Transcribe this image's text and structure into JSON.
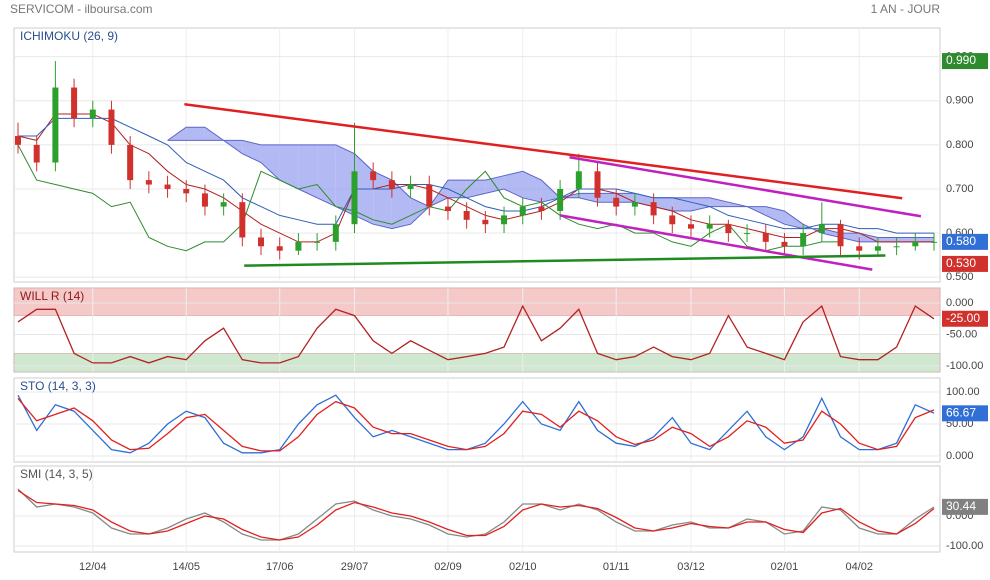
{
  "header": {
    "source": "SERVICOM - ilboursa.com",
    "period": "1 AN - JOUR"
  },
  "chart_data": [
    {
      "type": "candlestick",
      "title": "ICHIMOKU (26, 9)",
      "ylim": [
        0.489,
        1.065
      ],
      "yticks": [
        {
          "value": 0.5,
          "label": "0.500"
        },
        {
          "value": 0.6,
          "label": "0.600"
        },
        {
          "value": 0.7,
          "label": "0.700"
        },
        {
          "value": 0.8,
          "label": "0.800"
        },
        {
          "value": 0.9,
          "label": "0.900"
        },
        {
          "value": 1.0,
          "label": "1.000"
        }
      ],
      "up_color": "#2ca02c",
      "down_color": "#d0312d",
      "open": [
        0.82,
        0.8,
        0.76,
        0.93,
        0.86,
        0.88,
        0.8,
        0.72,
        0.71,
        0.7,
        0.69,
        0.66,
        0.67,
        0.59,
        0.57,
        0.56,
        0.58,
        0.58,
        0.62,
        0.74,
        0.72,
        0.7,
        0.71,
        0.66,
        0.65,
        0.63,
        0.62,
        0.64,
        0.66,
        0.65,
        0.7,
        0.74,
        0.68,
        0.66,
        0.67,
        0.64,
        0.62,
        0.61,
        0.62,
        0.6,
        0.6,
        0.58,
        0.57,
        0.6,
        0.62,
        0.57,
        0.56,
        0.57,
        0.57,
        0.58
      ],
      "high": [
        0.85,
        0.82,
        0.99,
        0.95,
        0.9,
        0.9,
        0.82,
        0.74,
        0.73,
        0.72,
        0.71,
        0.69,
        0.69,
        0.61,
        0.59,
        0.6,
        0.6,
        0.64,
        0.85,
        0.76,
        0.74,
        0.73,
        0.73,
        0.68,
        0.67,
        0.65,
        0.66,
        0.68,
        0.68,
        0.72,
        0.78,
        0.76,
        0.7,
        0.69,
        0.69,
        0.66,
        0.64,
        0.64,
        0.63,
        0.62,
        0.62,
        0.6,
        0.62,
        0.67,
        0.63,
        0.59,
        0.59,
        0.59,
        0.6,
        0.6
      ],
      "low": [
        0.78,
        0.74,
        0.74,
        0.84,
        0.84,
        0.78,
        0.7,
        0.69,
        0.68,
        0.67,
        0.64,
        0.64,
        0.57,
        0.55,
        0.54,
        0.55,
        0.56,
        0.56,
        0.6,
        0.7,
        0.68,
        0.68,
        0.64,
        0.63,
        0.61,
        0.6,
        0.6,
        0.62,
        0.63,
        0.63,
        0.68,
        0.66,
        0.64,
        0.64,
        0.62,
        0.6,
        0.59,
        0.59,
        0.58,
        0.58,
        0.56,
        0.55,
        0.55,
        0.58,
        0.55,
        0.54,
        0.55,
        0.55,
        0.56,
        0.56
      ],
      "close": [
        0.8,
        0.76,
        0.93,
        0.86,
        0.88,
        0.8,
        0.72,
        0.71,
        0.7,
        0.69,
        0.66,
        0.67,
        0.59,
        0.57,
        0.56,
        0.58,
        0.58,
        0.62,
        0.74,
        0.72,
        0.7,
        0.71,
        0.66,
        0.65,
        0.63,
        0.62,
        0.64,
        0.66,
        0.65,
        0.7,
        0.74,
        0.68,
        0.66,
        0.67,
        0.64,
        0.62,
        0.61,
        0.62,
        0.6,
        0.6,
        0.58,
        0.57,
        0.6,
        0.62,
        0.57,
        0.56,
        0.57,
        0.57,
        0.58,
        0.58
      ],
      "cloud": {
        "color": "#9aa3ef",
        "line_color": "#5b66c8",
        "span_a": [
          null,
          null,
          null,
          null,
          null,
          null,
          null,
          null,
          0.81,
          0.84,
          0.84,
          0.81,
          0.81,
          0.8,
          0.8,
          0.8,
          0.8,
          0.8,
          0.78,
          0.74,
          0.72,
          0.68,
          0.66,
          0.72,
          0.72,
          0.72,
          0.73,
          0.74,
          0.72,
          0.68,
          0.69,
          0.69,
          0.69,
          0.69,
          0.68,
          0.68,
          0.68,
          0.68,
          0.67,
          0.66,
          0.64,
          0.62,
          0.61,
          0.61,
          0.6,
          0.6,
          0.59,
          0.59,
          0.59,
          0.59
        ],
        "span_b": [
          null,
          null,
          null,
          null,
          null,
          null,
          null,
          null,
          0.81,
          0.81,
          0.81,
          0.81,
          0.78,
          0.76,
          0.72,
          0.7,
          0.68,
          0.66,
          0.64,
          0.62,
          0.61,
          0.62,
          0.66,
          0.68,
          0.68,
          0.69,
          0.7,
          0.68,
          0.67,
          0.68,
          0.68,
          0.67,
          0.67,
          0.67,
          0.66,
          0.65,
          0.65,
          0.66,
          0.66,
          0.66,
          0.66,
          0.65,
          0.62,
          0.6,
          0.59,
          0.58,
          0.58,
          0.58,
          0.58,
          0.58
        ]
      },
      "series": [
        {
          "color": "#b22222",
          "values": [
            0.82,
            0.81,
            0.87,
            0.87,
            0.87,
            0.85,
            0.8,
            0.78,
            0.74,
            0.71,
            0.7,
            0.68,
            0.65,
            0.62,
            0.6,
            0.58,
            0.58,
            0.6,
            0.7,
            0.7,
            0.71,
            0.71,
            0.7,
            0.68,
            0.66,
            0.64,
            0.63,
            0.64,
            0.65,
            0.67,
            0.7,
            0.7,
            0.69,
            0.67,
            0.66,
            0.65,
            0.63,
            0.62,
            0.62,
            0.61,
            0.6,
            0.59,
            0.59,
            0.61,
            0.61,
            0.6,
            0.58,
            0.58,
            0.58,
            0.58
          ]
        },
        {
          "color": "#2c5fb8",
          "values": [
            0.82,
            0.82,
            0.86,
            0.86,
            0.86,
            0.86,
            0.84,
            0.82,
            0.8,
            0.76,
            0.74,
            0.72,
            0.68,
            0.66,
            0.64,
            0.63,
            0.62,
            0.62,
            0.7,
            0.7,
            0.7,
            0.71,
            0.71,
            0.7,
            0.68,
            0.66,
            0.65,
            0.65,
            0.66,
            0.68,
            0.7,
            0.7,
            0.7,
            0.69,
            0.68,
            0.68,
            0.67,
            0.66,
            0.64,
            0.63,
            0.62,
            0.61,
            0.61,
            0.62,
            0.62,
            0.61,
            0.61,
            0.6,
            0.6,
            0.6
          ]
        },
        {
          "color": "#2e8b2e",
          "values": [
            0.8,
            0.72,
            0.71,
            0.7,
            0.69,
            0.66,
            0.67,
            0.59,
            0.57,
            0.56,
            0.58,
            0.58,
            0.62,
            0.74,
            0.72,
            0.7,
            0.71,
            0.66,
            0.65,
            0.63,
            0.62,
            0.64,
            0.66,
            0.65,
            0.7,
            0.74,
            0.68,
            0.66,
            0.67,
            0.64,
            0.62,
            0.61,
            0.62,
            0.6,
            0.6,
            0.58,
            0.57,
            0.6,
            0.62,
            0.57,
            0.56,
            0.57,
            0.57,
            0.58,
            0.58,
            null,
            null,
            null,
            null,
            null
          ]
        }
      ],
      "trend_lines": [
        {
          "color": "#e02020",
          "x": [
            8.9,
            47.3
          ],
          "y": [
            0.892,
            0.679
          ]
        },
        {
          "color": "#c020c0",
          "x": [
            29.5,
            48.3
          ],
          "y": [
            0.772,
            0.638
          ]
        },
        {
          "color": "#c020c0",
          "x": [
            29.0,
            45.7
          ],
          "y": [
            0.64,
            0.517
          ]
        },
        {
          "color": "#1f8a1f",
          "x": [
            12.1,
            46.4
          ],
          "y": [
            0.526,
            0.549
          ]
        }
      ],
      "badges": [
        {
          "value": 0.99,
          "label": "0.990",
          "color": "#2e8b2e"
        },
        {
          "value": 0.58,
          "label": "0.580",
          "color": "#2f6fd6"
        },
        {
          "value": 0.53,
          "label": "0.530",
          "color": "#d0312d"
        }
      ]
    },
    {
      "type": "line",
      "title": "WILL R (14)",
      "ylim": [
        -109.5,
        23.8
      ],
      "yticks": [
        {
          "value": 0,
          "label": "0.000"
        },
        {
          "value": -50,
          "label": "-50.00"
        },
        {
          "value": -100,
          "label": "-100.00"
        }
      ],
      "zones": [
        {
          "from": -20,
          "to": 23.8,
          "color": "#f6c9c9"
        },
        {
          "from": -109.5,
          "to": -80,
          "color": "#cfe8cf"
        }
      ],
      "series": [
        {
          "color": "#b22222",
          "values": [
            -30,
            -10,
            -10,
            -80,
            -95,
            -95,
            -85,
            -95,
            -85,
            -90,
            -60,
            -40,
            -90,
            -95,
            -95,
            -85,
            -40,
            -10,
            -20,
            -60,
            -80,
            -60,
            -75,
            -90,
            -85,
            -80,
            -70,
            -5,
            -60,
            -40,
            -10,
            -80,
            -90,
            -85,
            -70,
            -85,
            -90,
            -80,
            -20,
            -70,
            -80,
            -90,
            -30,
            -5,
            -85,
            -90,
            -90,
            -70,
            -5,
            -25
          ]
        }
      ],
      "badges": [
        {
          "value": -25,
          "label": "-25.00",
          "color": "#d0312d"
        }
      ]
    },
    {
      "type": "line",
      "title": "STO (14, 3, 3)",
      "ylim": [
        -9.4,
        121.9
      ],
      "yticks": [
        {
          "value": 100,
          "label": "100.00"
        },
        {
          "value": 50,
          "label": "50.00"
        },
        {
          "value": 0,
          "label": "0.000"
        }
      ],
      "series": [
        {
          "color": "#2f6fd6",
          "values": [
            95,
            40,
            80,
            70,
            40,
            10,
            5,
            20,
            50,
            70,
            60,
            20,
            5,
            5,
            10,
            50,
            80,
            95,
            60,
            30,
            40,
            30,
            20,
            10,
            10,
            20,
            50,
            85,
            50,
            40,
            85,
            40,
            20,
            15,
            30,
            60,
            20,
            10,
            40,
            70,
            30,
            10,
            30,
            90,
            30,
            10,
            10,
            20,
            80,
            67
          ]
        },
        {
          "color": "#e02020",
          "values": [
            90,
            55,
            65,
            75,
            55,
            25,
            10,
            12,
            35,
            60,
            65,
            40,
            15,
            8,
            8,
            30,
            65,
            85,
            75,
            45,
            35,
            35,
            25,
            15,
            10,
            15,
            35,
            70,
            65,
            45,
            70,
            55,
            30,
            18,
            25,
            45,
            35,
            15,
            30,
            55,
            45,
            20,
            25,
            70,
            50,
            20,
            10,
            15,
            60,
            72
          ]
        }
      ],
      "badges": [
        {
          "value": 66.67,
          "label": "66.67",
          "color": "#2f6fd6"
        }
      ]
    },
    {
      "type": "line",
      "title": "SMI (14, 3, 5)",
      "ylim": [
        -120,
        166.7
      ],
      "yticks": [
        {
          "value": 0,
          "label": "0.000"
        },
        {
          "value": -100,
          "label": "-100.00"
        }
      ],
      "categories": [
        null,
        null,
        null,
        null,
        "12/04",
        null,
        null,
        null,
        null,
        "14/05",
        null,
        null,
        null,
        null,
        "17/06",
        null,
        null,
        null,
        "29/07",
        null,
        null,
        null,
        null,
        "02/09",
        null,
        null,
        null,
        "02/10",
        null,
        null,
        null,
        null,
        "01/11",
        null,
        null,
        null,
        "03/12",
        null,
        null,
        null,
        null,
        "02/01",
        null,
        null,
        null,
        "04/02",
        null,
        null,
        null,
        null
      ],
      "series": [
        {
          "color": "#888888",
          "values": [
            90,
            30,
            40,
            30,
            10,
            -40,
            -60,
            -60,
            -40,
            -10,
            10,
            -20,
            -60,
            -80,
            -80,
            -60,
            -10,
            40,
            50,
            20,
            0,
            -10,
            -30,
            -60,
            -70,
            -60,
            -20,
            40,
            40,
            20,
            40,
            20,
            -20,
            -50,
            -50,
            -30,
            -20,
            -40,
            -40,
            -10,
            -20,
            -60,
            -50,
            30,
            20,
            -40,
            -60,
            -60,
            -10,
            30
          ]
        },
        {
          "color": "#e02020",
          "values": [
            85,
            45,
            40,
            35,
            20,
            -20,
            -50,
            -60,
            -50,
            -25,
            0,
            -10,
            -45,
            -70,
            -80,
            -70,
            -30,
            20,
            45,
            30,
            10,
            0,
            -20,
            -45,
            -65,
            -65,
            -35,
            20,
            40,
            30,
            35,
            25,
            -5,
            -40,
            -50,
            -40,
            -25,
            -35,
            -40,
            -20,
            -20,
            -45,
            -55,
            10,
            25,
            -20,
            -50,
            -60,
            -25,
            25
          ]
        }
      ],
      "badges": [
        {
          "value": 30.44,
          "label": "30.44",
          "color": "#808080"
        }
      ]
    }
  ]
}
